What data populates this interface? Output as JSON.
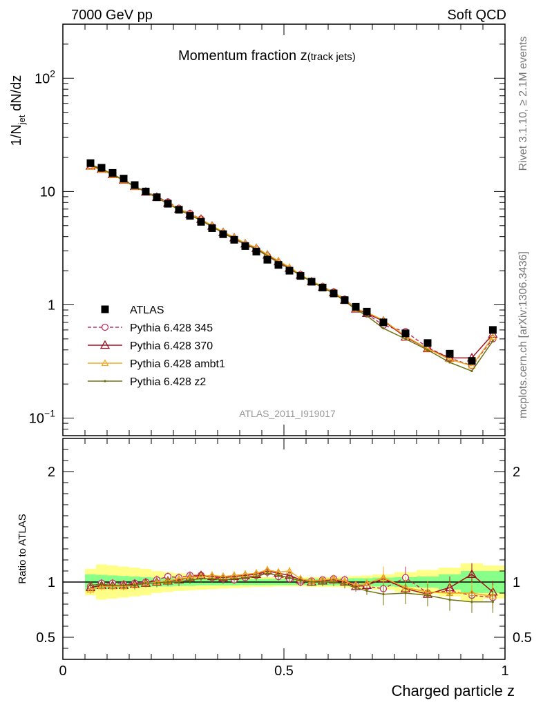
{
  "header": {
    "left": "7000 GeV pp",
    "right": "Soft QCD"
  },
  "side_labels": {
    "rivet": "Rivet 3.1.10, ≥ 2.1M events",
    "mcplots": "mcplots.cern.ch [arXiv:1306.3436]"
  },
  "colors": {
    "atlas": "#000000",
    "p345": "#c03060",
    "p370": "#a01020",
    "ambt1": "#f2a81e",
    "z2": "#707010",
    "band_inner": "#88ff88",
    "band_outer": "#ffff88"
  },
  "chart_data": [
    {
      "type": "line",
      "title": "Momentum fraction z",
      "title_sub": "(track jets)",
      "ylabel_main": "1/N",
      "ylabel_sub": "jet",
      "ylabel_tail": " dN/dz",
      "yscale": "log",
      "xlim": [
        0,
        1
      ],
      "ylim": [
        0.07,
        300
      ],
      "watermark": "ATLAS_2011_I919017",
      "x": [
        0.0625,
        0.0875,
        0.1125,
        0.1375,
        0.1625,
        0.1875,
        0.2125,
        0.2375,
        0.2625,
        0.2875,
        0.3125,
        0.3375,
        0.3625,
        0.3875,
        0.4125,
        0.4375,
        0.4625,
        0.4875,
        0.5125,
        0.5375,
        0.5625,
        0.5875,
        0.6125,
        0.6375,
        0.6625,
        0.6875,
        0.725,
        0.775,
        0.825,
        0.875,
        0.925,
        0.9725
      ],
      "legend": [
        "ATLAS",
        "Pythia 6.428 345",
        "Pythia 6.428 370",
        "Pythia 6.428 ambt1",
        "Pythia 6.428 z2"
      ],
      "series": [
        {
          "name": "ATLAS",
          "marker": "square",
          "values": [
            17.8,
            16.2,
            14.6,
            13.0,
            11.4,
            10.0,
            8.9,
            7.8,
            6.9,
            6.1,
            5.4,
            4.75,
            4.2,
            3.75,
            3.3,
            2.95,
            2.5,
            2.25,
            2.0,
            1.8,
            1.6,
            1.42,
            1.26,
            1.1,
            0.96,
            0.87,
            0.7,
            0.56,
            0.46,
            0.37,
            0.32,
            0.6
          ]
        },
        {
          "name": "Pythia 6.428 345",
          "marker": "circle",
          "dashed": true,
          "values": [
            17.0,
            15.8,
            14.2,
            12.7,
            11.2,
            10.0,
            9.0,
            8.1,
            7.1,
            6.4,
            5.7,
            4.9,
            4.3,
            3.8,
            3.4,
            3.1,
            2.7,
            2.35,
            2.05,
            1.85,
            1.6,
            1.45,
            1.3,
            1.12,
            0.93,
            0.83,
            0.66,
            0.58,
            0.42,
            0.34,
            0.29,
            0.5
          ]
        },
        {
          "name": "Pythia 6.428 370",
          "marker": "triangle",
          "values": [
            16.8,
            15.7,
            14.1,
            12.6,
            11.1,
            9.9,
            8.9,
            7.9,
            7.0,
            6.3,
            5.7,
            4.95,
            4.35,
            3.9,
            3.45,
            3.15,
            2.75,
            2.4,
            2.1,
            1.83,
            1.6,
            1.43,
            1.28,
            1.1,
            0.92,
            0.84,
            0.72,
            0.52,
            0.41,
            0.34,
            0.34,
            0.55
          ]
        },
        {
          "name": "Pythia 6.428 ambt1",
          "marker": "triangle-small",
          "values": [
            16.6,
            15.5,
            14.0,
            12.5,
            11.0,
            9.9,
            8.9,
            7.9,
            7.1,
            6.3,
            5.7,
            5.0,
            4.4,
            3.95,
            3.5,
            3.2,
            2.78,
            2.45,
            2.15,
            1.85,
            1.62,
            1.45,
            1.29,
            1.11,
            0.92,
            0.86,
            0.73,
            0.53,
            0.41,
            0.33,
            0.29,
            0.52
          ]
        },
        {
          "name": "Pythia 6.428 z2",
          "marker": "dot",
          "values": [
            17.3,
            15.9,
            14.2,
            12.6,
            11.1,
            9.9,
            8.8,
            7.8,
            6.9,
            6.2,
            5.55,
            4.9,
            4.3,
            3.85,
            3.42,
            3.1,
            2.7,
            2.38,
            2.08,
            1.82,
            1.6,
            1.42,
            1.26,
            1.08,
            0.91,
            0.8,
            0.62,
            0.5,
            0.4,
            0.31,
            0.26,
            0.48
          ]
        }
      ]
    },
    {
      "type": "line",
      "ylabel": "Ratio to ATLAS",
      "xlabel": "Charged particle z",
      "xlim": [
        0,
        1
      ],
      "ylim": [
        0.3,
        2.3
      ],
      "x_ticks": [
        0,
        0.5,
        1
      ],
      "x_tick_labels": [
        "0",
        "0.5",
        "1"
      ],
      "y_ticks": [
        0.5,
        1,
        2
      ],
      "y_tick_labels": [
        "0.5",
        "1",
        "2"
      ],
      "x_edges": [
        0.05,
        0.075,
        0.1,
        0.125,
        0.15,
        0.175,
        0.2,
        0.225,
        0.25,
        0.275,
        0.3,
        0.325,
        0.35,
        0.375,
        0.4,
        0.425,
        0.45,
        0.475,
        0.5,
        0.525,
        0.55,
        0.575,
        0.6,
        0.625,
        0.65,
        0.675,
        0.7,
        0.75,
        0.8,
        0.85,
        0.9,
        0.95,
        1.0
      ],
      "band_inner": [
        0.07,
        0.065,
        0.06,
        0.055,
        0.05,
        0.045,
        0.04,
        0.04,
        0.035,
        0.035,
        0.03,
        0.03,
        0.03,
        0.03,
        0.028,
        0.028,
        0.028,
        0.028,
        0.028,
        0.028,
        0.03,
        0.03,
        0.03,
        0.032,
        0.035,
        0.035,
        0.04,
        0.045,
        0.05,
        0.07,
        0.1,
        0.1
      ],
      "band_outer": [
        0.12,
        0.16,
        0.15,
        0.14,
        0.13,
        0.12,
        0.1,
        0.09,
        0.08,
        0.075,
        0.07,
        0.065,
        0.06,
        0.055,
        0.05,
        0.045,
        0.045,
        0.04,
        0.04,
        0.04,
        0.045,
        0.045,
        0.045,
        0.05,
        0.055,
        0.06,
        0.07,
        0.09,
        0.11,
        0.13,
        0.17,
        0.15
      ],
      "series": [
        {
          "name": "Pythia 6.428 345",
          "marker": "circle",
          "dashed": true,
          "values": [
            0.96,
            0.99,
            0.99,
            0.98,
            0.99,
            1.0,
            1.02,
            1.05,
            1.04,
            1.06,
            1.06,
            1.04,
            1.03,
            1.02,
            1.04,
            1.06,
            1.09,
            1.05,
            1.03,
            1.0,
            1.01,
            1.02,
            1.03,
            1.02,
            0.97,
            0.96,
            0.94,
            1.04,
            0.9,
            0.92,
            0.88,
            0.86
          ]
        },
        {
          "name": "Pythia 6.428 370",
          "marker": "triangle",
          "values": [
            0.95,
            0.97,
            0.97,
            0.97,
            0.98,
            0.99,
            1.0,
            1.01,
            1.02,
            1.04,
            1.06,
            1.05,
            1.04,
            1.05,
            1.06,
            1.07,
            1.1,
            1.08,
            1.06,
            1.02,
            1.0,
            1.01,
            1.02,
            1.0,
            0.96,
            0.97,
            1.03,
            0.94,
            0.89,
            0.95,
            1.07,
            0.91
          ]
        },
        {
          "name": "Pythia 6.428 ambt1",
          "marker": "triangle-small",
          "values": [
            0.93,
            0.96,
            0.96,
            0.96,
            0.97,
            0.99,
            1.0,
            1.01,
            1.03,
            1.04,
            1.05,
            1.06,
            1.05,
            1.06,
            1.07,
            1.08,
            1.11,
            1.09,
            1.1,
            1.03,
            1.01,
            1.02,
            1.03,
            1.01,
            0.97,
            0.99,
            1.04,
            0.95,
            0.91,
            0.9,
            0.9,
            0.87
          ]
        },
        {
          "name": "Pythia 6.428 z2",
          "marker": "dot",
          "values": [
            0.97,
            0.98,
            0.97,
            0.97,
            0.97,
            0.99,
            0.99,
            1.0,
            1.0,
            1.02,
            1.03,
            1.03,
            1.02,
            1.03,
            1.04,
            1.05,
            1.08,
            1.06,
            1.04,
            1.01,
            1.0,
            1.0,
            1.0,
            0.98,
            0.95,
            0.92,
            0.89,
            0.9,
            0.88,
            0.84,
            0.82,
            0.82
          ]
        }
      ]
    }
  ]
}
